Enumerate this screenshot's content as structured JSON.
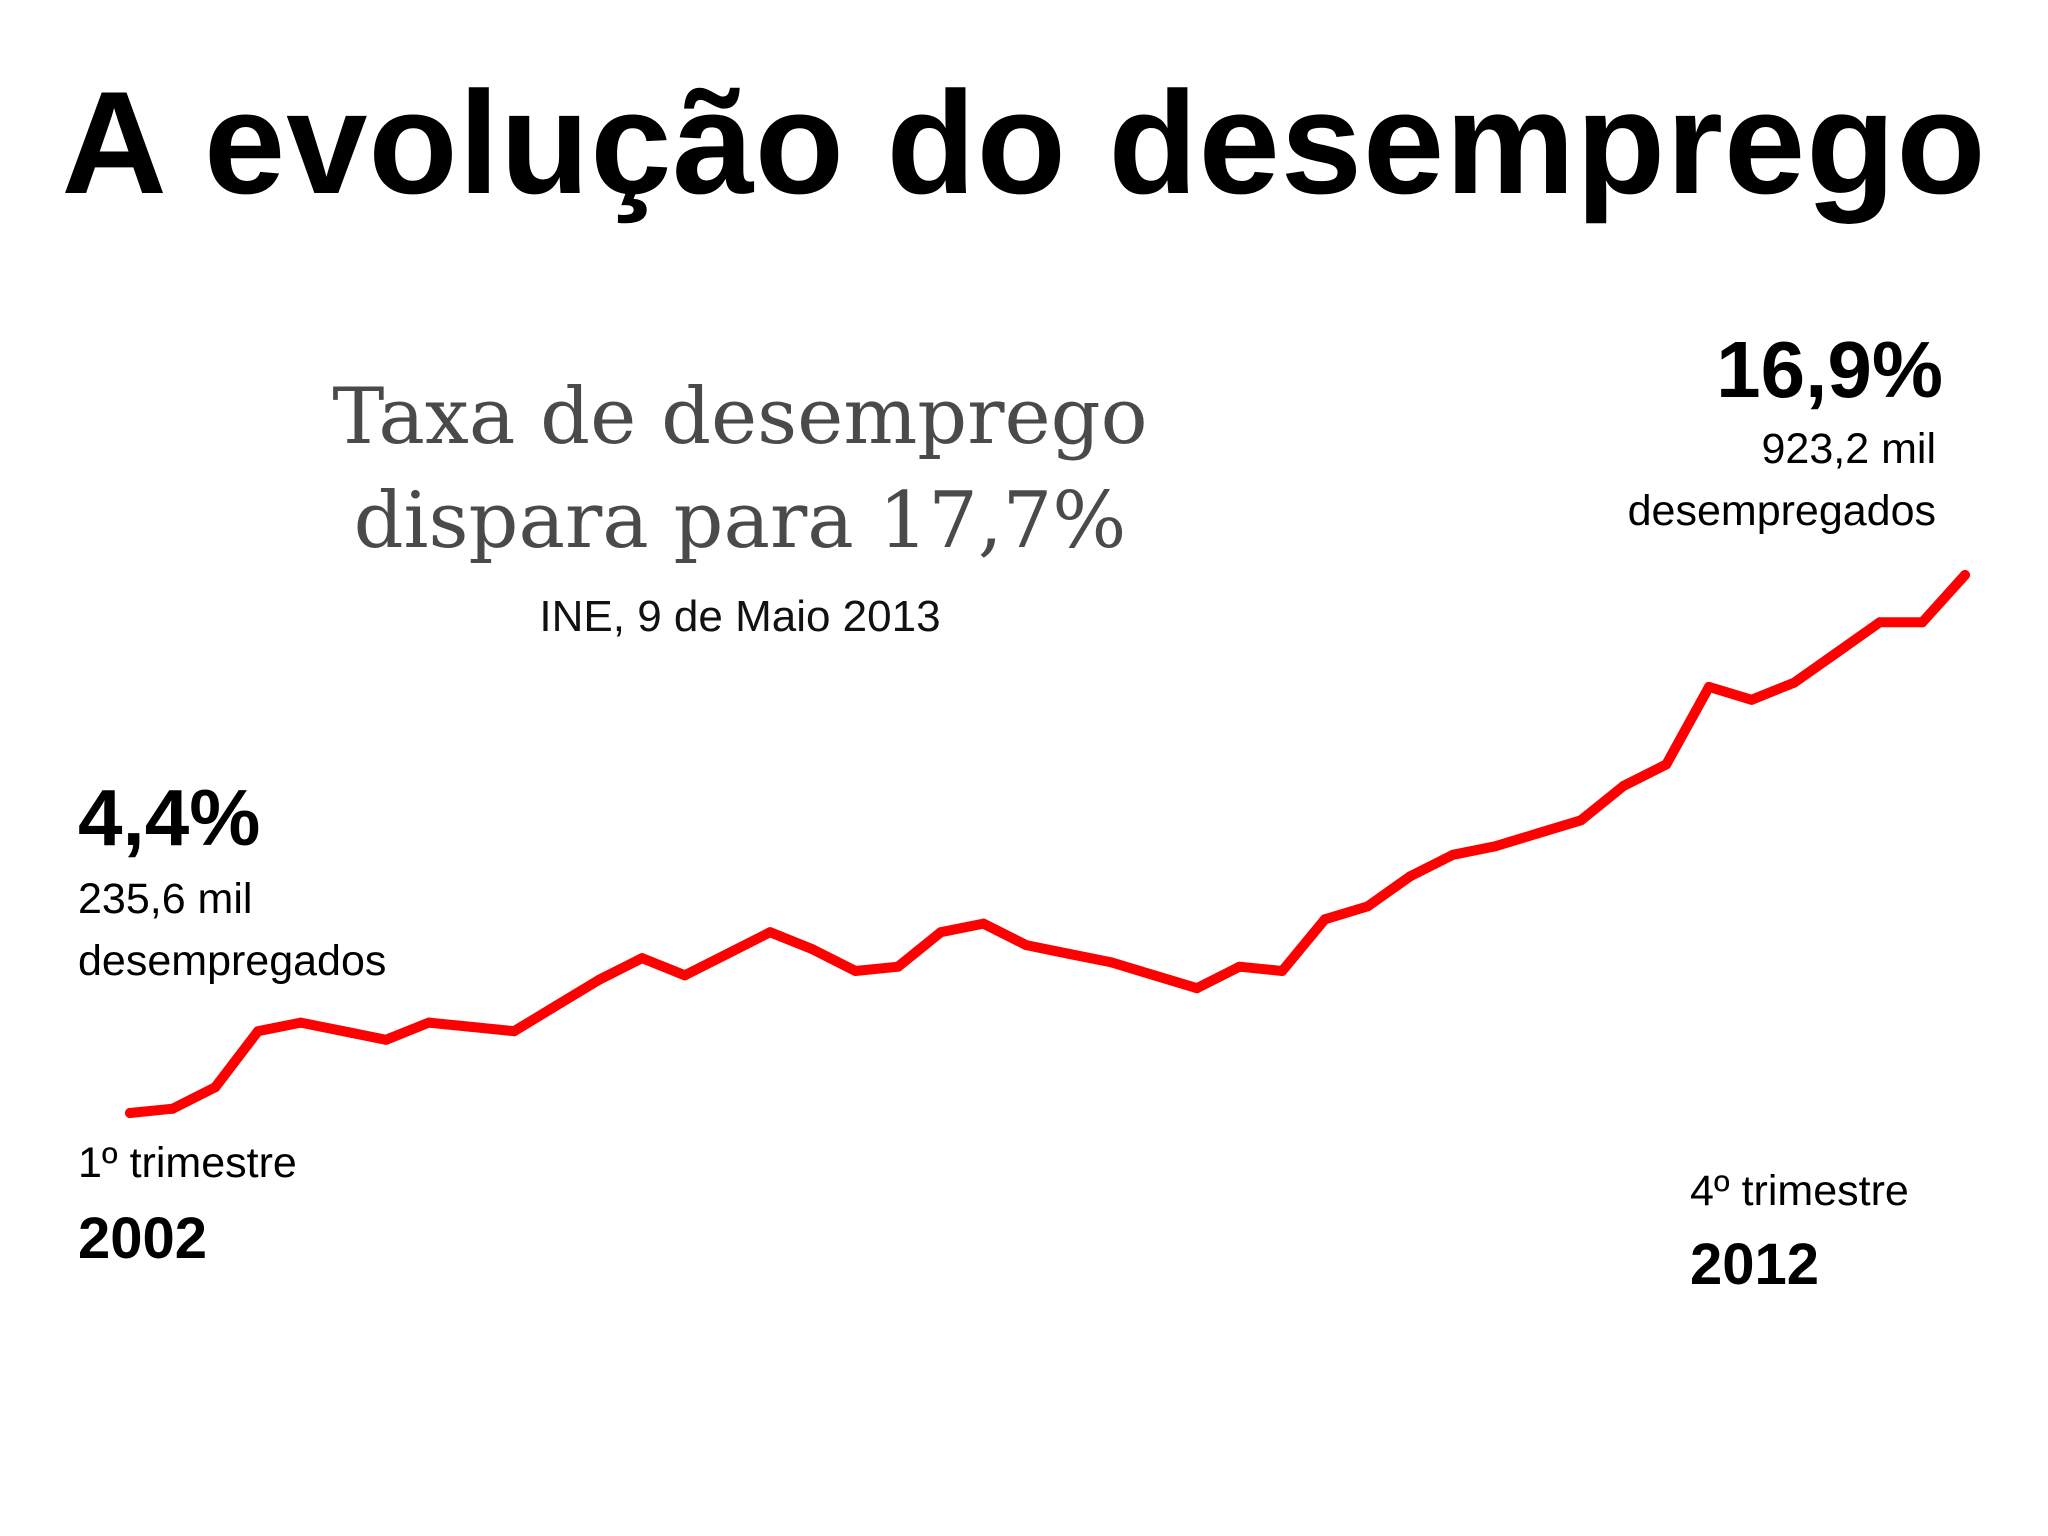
{
  "title": "A evolução do desemprego",
  "headline": {
    "line1": "Taxa de desemprego",
    "line2": "dispara para 17,7%"
  },
  "source": "INE, 9 de Maio 2013",
  "start": {
    "value": "4,4%",
    "detail_line1": "235,6 mil",
    "detail_line2": "desempregados",
    "period": "1º trimestre",
    "year": "2002"
  },
  "end": {
    "value": "16,9%",
    "detail_line1": "923,2 mil",
    "detail_line2": "desempregados",
    "period": "4º trimestre",
    "year": "2012"
  },
  "chart_data": {
    "type": "line",
    "x": [
      "2002-T1",
      "2002-T2",
      "2002-T3",
      "2002-T4",
      "2003-T1",
      "2003-T2",
      "2003-T3",
      "2003-T4",
      "2004-T1",
      "2004-T2",
      "2004-T3",
      "2004-T4",
      "2005-T1",
      "2005-T2",
      "2005-T3",
      "2005-T4",
      "2006-T1",
      "2006-T2",
      "2006-T3",
      "2006-T4",
      "2007-T1",
      "2007-T2",
      "2007-T3",
      "2007-T4",
      "2008-T1",
      "2008-T2",
      "2008-T3",
      "2008-T4",
      "2009-T1",
      "2009-T2",
      "2009-T3",
      "2009-T4",
      "2010-T1",
      "2010-T2",
      "2010-T3",
      "2010-T4",
      "2011-T1",
      "2011-T2",
      "2011-T3",
      "2011-T4",
      "2012-T1",
      "2012-T2",
      "2012-T3",
      "2012-T4"
    ],
    "values": [
      4.4,
      4.5,
      5.0,
      6.3,
      6.5,
      6.3,
      6.1,
      6.5,
      6.4,
      6.3,
      6.9,
      7.5,
      8.0,
      7.6,
      8.1,
      8.6,
      8.2,
      7.7,
      7.8,
      8.6,
      8.8,
      8.3,
      8.1,
      7.9,
      7.6,
      7.3,
      7.8,
      7.7,
      8.9,
      9.2,
      9.9,
      10.4,
      10.6,
      10.9,
      11.2,
      12.0,
      12.5,
      14.3,
      14.0,
      14.4,
      15.1,
      15.8,
      15.8,
      16.9
    ],
    "color": "#ff0000",
    "grid": false,
    "legend": "none"
  }
}
